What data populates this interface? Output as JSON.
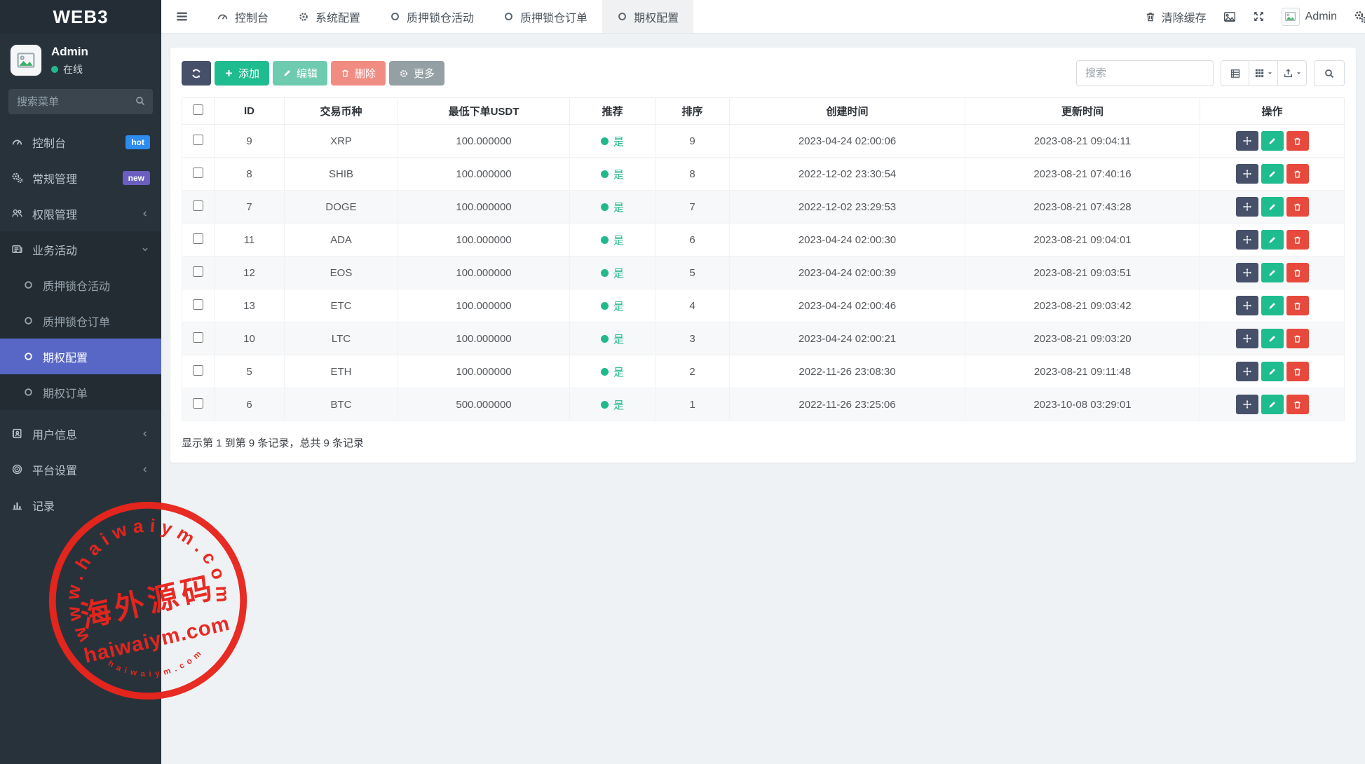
{
  "app": {
    "brand": "WEB3"
  },
  "colors": {
    "sidebar_bg": "#28323b",
    "active_menu": "#5867c6",
    "success": "#1fbc8f",
    "primary_dark": "#475069",
    "danger": "#e7493c",
    "danger_soft": "#f08c82",
    "more_gray": "#95a0a5",
    "hot_badge": "#2d8cf0",
    "new_badge": "#6a5fc1",
    "stamp_red": "#e8251d",
    "content_bg": "#eef2f5"
  },
  "sidebar": {
    "user": {
      "name": "Admin",
      "status": "在线"
    },
    "search_placeholder": "搜索菜单",
    "items": [
      {
        "label": "控制台",
        "icon": "gauge-icon",
        "badge": "hot"
      },
      {
        "label": "常规管理",
        "icon": "gears-icon",
        "badge": "new"
      },
      {
        "label": "权限管理",
        "icon": "users-icon",
        "chevron": "left"
      },
      {
        "label": "业务活动",
        "icon": "news-icon",
        "chevron": "down",
        "expanded": true,
        "children": [
          {
            "label": "质押锁仓活动"
          },
          {
            "label": "质押锁仓订单"
          },
          {
            "label": "期权配置",
            "active": true
          },
          {
            "label": "期权订单"
          }
        ]
      },
      {
        "label": "用户信息",
        "icon": "address-book-icon",
        "chevron": "left"
      },
      {
        "label": "平台设置",
        "icon": "bullseye-icon",
        "chevron": "left"
      },
      {
        "label": "记录",
        "icon": "chart-icon",
        "chevron": "left"
      }
    ]
  },
  "topnav": {
    "tabs": [
      {
        "label": "控制台",
        "icon": "gauge-icon"
      },
      {
        "label": "系统配置",
        "icon": "gear-icon"
      },
      {
        "label": "质押锁仓活动",
        "icon": "circle-icon"
      },
      {
        "label": "质押锁仓订单",
        "icon": "circle-icon"
      },
      {
        "label": "期权配置",
        "icon": "circle-icon",
        "active": true
      }
    ],
    "right": {
      "clear_cache": "清除缓存",
      "username": "Admin"
    }
  },
  "toolbar": {
    "buttons": [
      {
        "label": "",
        "name": "refresh"
      },
      {
        "label": "添加",
        "name": "add"
      },
      {
        "label": "编辑",
        "name": "edit"
      },
      {
        "label": "删除",
        "name": "delete"
      },
      {
        "label": "更多",
        "name": "more"
      }
    ],
    "search_placeholder": "搜索"
  },
  "table": {
    "columns": [
      "ID",
      "交易币种",
      "最低下单USDT",
      "推荐",
      "排序",
      "创建时间",
      "更新时间",
      "操作"
    ],
    "rows": [
      {
        "id": "9",
        "symbol": "XRP",
        "min": "100.000000",
        "recommend": "是",
        "sort": "9",
        "created": "2023-04-24 02:00:06",
        "updated": "2023-08-21 09:04:11"
      },
      {
        "id": "8",
        "symbol": "SHIB",
        "min": "100.000000",
        "recommend": "是",
        "sort": "8",
        "created": "2022-12-02 23:30:54",
        "updated": "2023-08-21 07:40:16"
      },
      {
        "id": "7",
        "symbol": "DOGE",
        "min": "100.000000",
        "recommend": "是",
        "sort": "7",
        "created": "2022-12-02 23:29:53",
        "updated": "2023-08-21 07:43:28"
      },
      {
        "id": "11",
        "symbol": "ADA",
        "min": "100.000000",
        "recommend": "是",
        "sort": "6",
        "created": "2023-04-24 02:00:30",
        "updated": "2023-08-21 09:04:01"
      },
      {
        "id": "12",
        "symbol": "EOS",
        "min": "100.000000",
        "recommend": "是",
        "sort": "5",
        "created": "2023-04-24 02:00:39",
        "updated": "2023-08-21 09:03:51"
      },
      {
        "id": "13",
        "symbol": "ETC",
        "min": "100.000000",
        "recommend": "是",
        "sort": "4",
        "created": "2023-04-24 02:00:46",
        "updated": "2023-08-21 09:03:42"
      },
      {
        "id": "10",
        "symbol": "LTC",
        "min": "100.000000",
        "recommend": "是",
        "sort": "3",
        "created": "2023-04-24 02:00:21",
        "updated": "2023-08-21 09:03:20"
      },
      {
        "id": "5",
        "symbol": "ETH",
        "min": "100.000000",
        "recommend": "是",
        "sort": "2",
        "created": "2022-11-26 23:08:30",
        "updated": "2023-08-21 09:11:48"
      },
      {
        "id": "6",
        "symbol": "BTC",
        "min": "500.000000",
        "recommend": "是",
        "sort": "1",
        "created": "2022-11-26 23:25:06",
        "updated": "2023-10-08 03:29:01"
      }
    ],
    "footer": "显示第 1 到第 9 条记录，总共 9 条记录"
  },
  "watermark": {
    "arc_top": "www.haiwaiym.com",
    "center": "海外源码",
    "line": "haiwaiym.com",
    "arc_bottom": "haiwaiym.com"
  }
}
